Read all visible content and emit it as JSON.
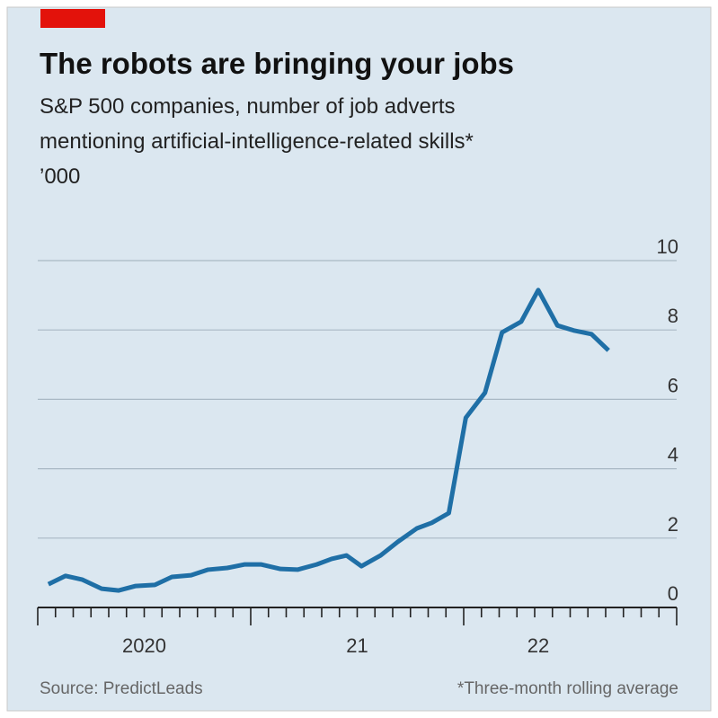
{
  "chart_data": {
    "type": "line",
    "title": "The robots are bringing your jobs",
    "subtitle": "S&P 500 companies, number of job adverts",
    "subtitle_2": "mentioning artificial-intelligence-related skills*",
    "y_unit": "’000",
    "source": "Source: PredictLeads",
    "footnote": "*Three-month rolling average",
    "x": [
      2020.05,
      2020.13,
      2020.21,
      2020.3,
      2020.38,
      2020.46,
      2020.55,
      2020.63,
      2020.72,
      2020.8,
      2020.89,
      2020.97,
      2021.05,
      2021.14,
      2021.22,
      2021.31,
      2021.38,
      2021.45,
      2021.52,
      2021.61,
      2021.69,
      2021.78,
      2021.85,
      2021.93,
      2022.01,
      2022.1,
      2022.18,
      2022.27,
      2022.35,
      2022.44,
      2022.52,
      2022.6,
      2022.68
    ],
    "series": [
      {
        "color": "#1f6fa6",
        "values": [
          0.67,
          0.91,
          0.8,
          0.54,
          0.49,
          0.62,
          0.65,
          0.88,
          0.93,
          1.09,
          1.14,
          1.24,
          1.24,
          1.11,
          1.09,
          1.24,
          1.4,
          1.5,
          1.19,
          1.5,
          1.89,
          2.28,
          2.44,
          2.72,
          5.47,
          6.19,
          7.93,
          8.24,
          9.15,
          8.13,
          7.98,
          7.88,
          7.41
        ]
      }
    ],
    "xlim": [
      2020,
      2023
    ],
    "xticks": [
      {
        "value": 2020.5,
        "label": "2020"
      },
      {
        "value": 2021.5,
        "label": "21"
      },
      {
        "value": 2022.35,
        "label": "22"
      }
    ],
    "ylim": [
      0,
      10
    ],
    "yticks": [
      0,
      2,
      4,
      6,
      8,
      10
    ],
    "grid": true
  }
}
